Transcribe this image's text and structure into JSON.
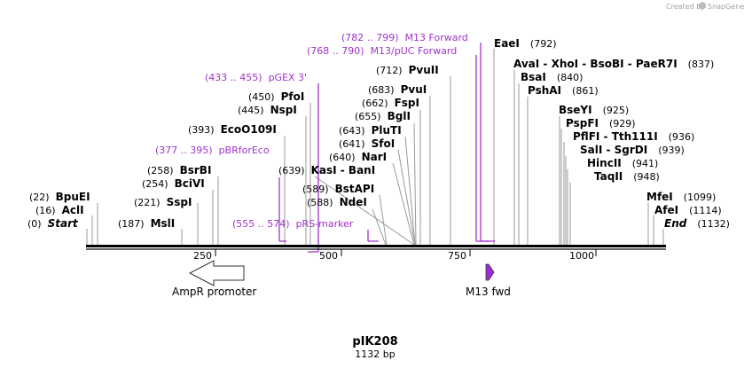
{
  "credit": {
    "created_by": "Created by",
    "brand": "SnapGene"
  },
  "plasmid": {
    "name": "pIK208",
    "length_label": "1132 bp",
    "length": 1132
  },
  "axis_ticks": [
    "250",
    "500",
    "750",
    "1000"
  ],
  "enzymes": [
    {
      "row": "(22)",
      "name": "BpuEI"
    },
    {
      "row": "(16)",
      "name": "AclI"
    },
    {
      "row": "(0)",
      "name": "Start"
    },
    {
      "row": "(187)",
      "name": "MslI"
    },
    {
      "row": "(221)",
      "name": "SspI"
    },
    {
      "row": "(254)",
      "name": "BciVI"
    },
    {
      "row": "(258)",
      "name": "BsrBI"
    },
    {
      "row": "(393)",
      "name": "EcoO109I"
    },
    {
      "row": "(445)",
      "name": "NspI"
    },
    {
      "row": "(450)",
      "name": "PfoI"
    },
    {
      "row": "(639)",
      "name": "KasI - BanI"
    },
    {
      "row": "(589)",
      "name": "BstAPI"
    },
    {
      "row": "(588)",
      "name": "NdeI"
    },
    {
      "row": "(640)",
      "name": "NarI"
    },
    {
      "row": "(641)",
      "name": "SfoI"
    },
    {
      "row": "(643)",
      "name": "PluTI"
    },
    {
      "row": "(655)",
      "name": "BglI"
    },
    {
      "row": "(662)",
      "name": "FspI"
    },
    {
      "row": "(683)",
      "name": "PvuI"
    },
    {
      "row": "(712)",
      "name": "PvuII"
    },
    {
      "row": "(792)",
      "name": "EaeI"
    },
    {
      "row": "(837)",
      "name": "AvaI - XhoI - BsoBI - PaeR7I"
    },
    {
      "row": "(840)",
      "name": "BsaI"
    },
    {
      "row": "(861)",
      "name": "PshAI"
    },
    {
      "row": "(925)",
      "name": "BseYI"
    },
    {
      "row": "(929)",
      "name": "PspFI"
    },
    {
      "row": "(936)",
      "name": "PflFI - Tth111I"
    },
    {
      "row": "(939)",
      "name": "SalI - SgrDI"
    },
    {
      "row": "(941)",
      "name": "HincII"
    },
    {
      "row": "(948)",
      "name": "TaqII"
    },
    {
      "row": "(1099)",
      "name": "MfeI"
    },
    {
      "row": "(1114)",
      "name": "AfeI"
    },
    {
      "row": "(1132)",
      "name": "End"
    }
  ],
  "primers": [
    {
      "range": "(782 .. 799)",
      "name": "M13 Forward"
    },
    {
      "range": "(768 .. 790)",
      "name": "M13/pUC Forward"
    },
    {
      "range": "(433 .. 455)",
      "name": "pGEX 3'"
    },
    {
      "range": "(377 .. 395)",
      "name": "pBRforEco"
    },
    {
      "range": "(555 .. 574)",
      "name": "pRS-marker"
    }
  ],
  "features": [
    {
      "name": "AmpR promoter",
      "direction": "reverse",
      "color": "#ffffff"
    },
    {
      "name": "M13 fwd",
      "direction": "forward",
      "color": "#9b2fd6"
    }
  ],
  "colors": {
    "primer": "#a133cc",
    "backbone": "#000000",
    "site_line": "#999999"
  }
}
